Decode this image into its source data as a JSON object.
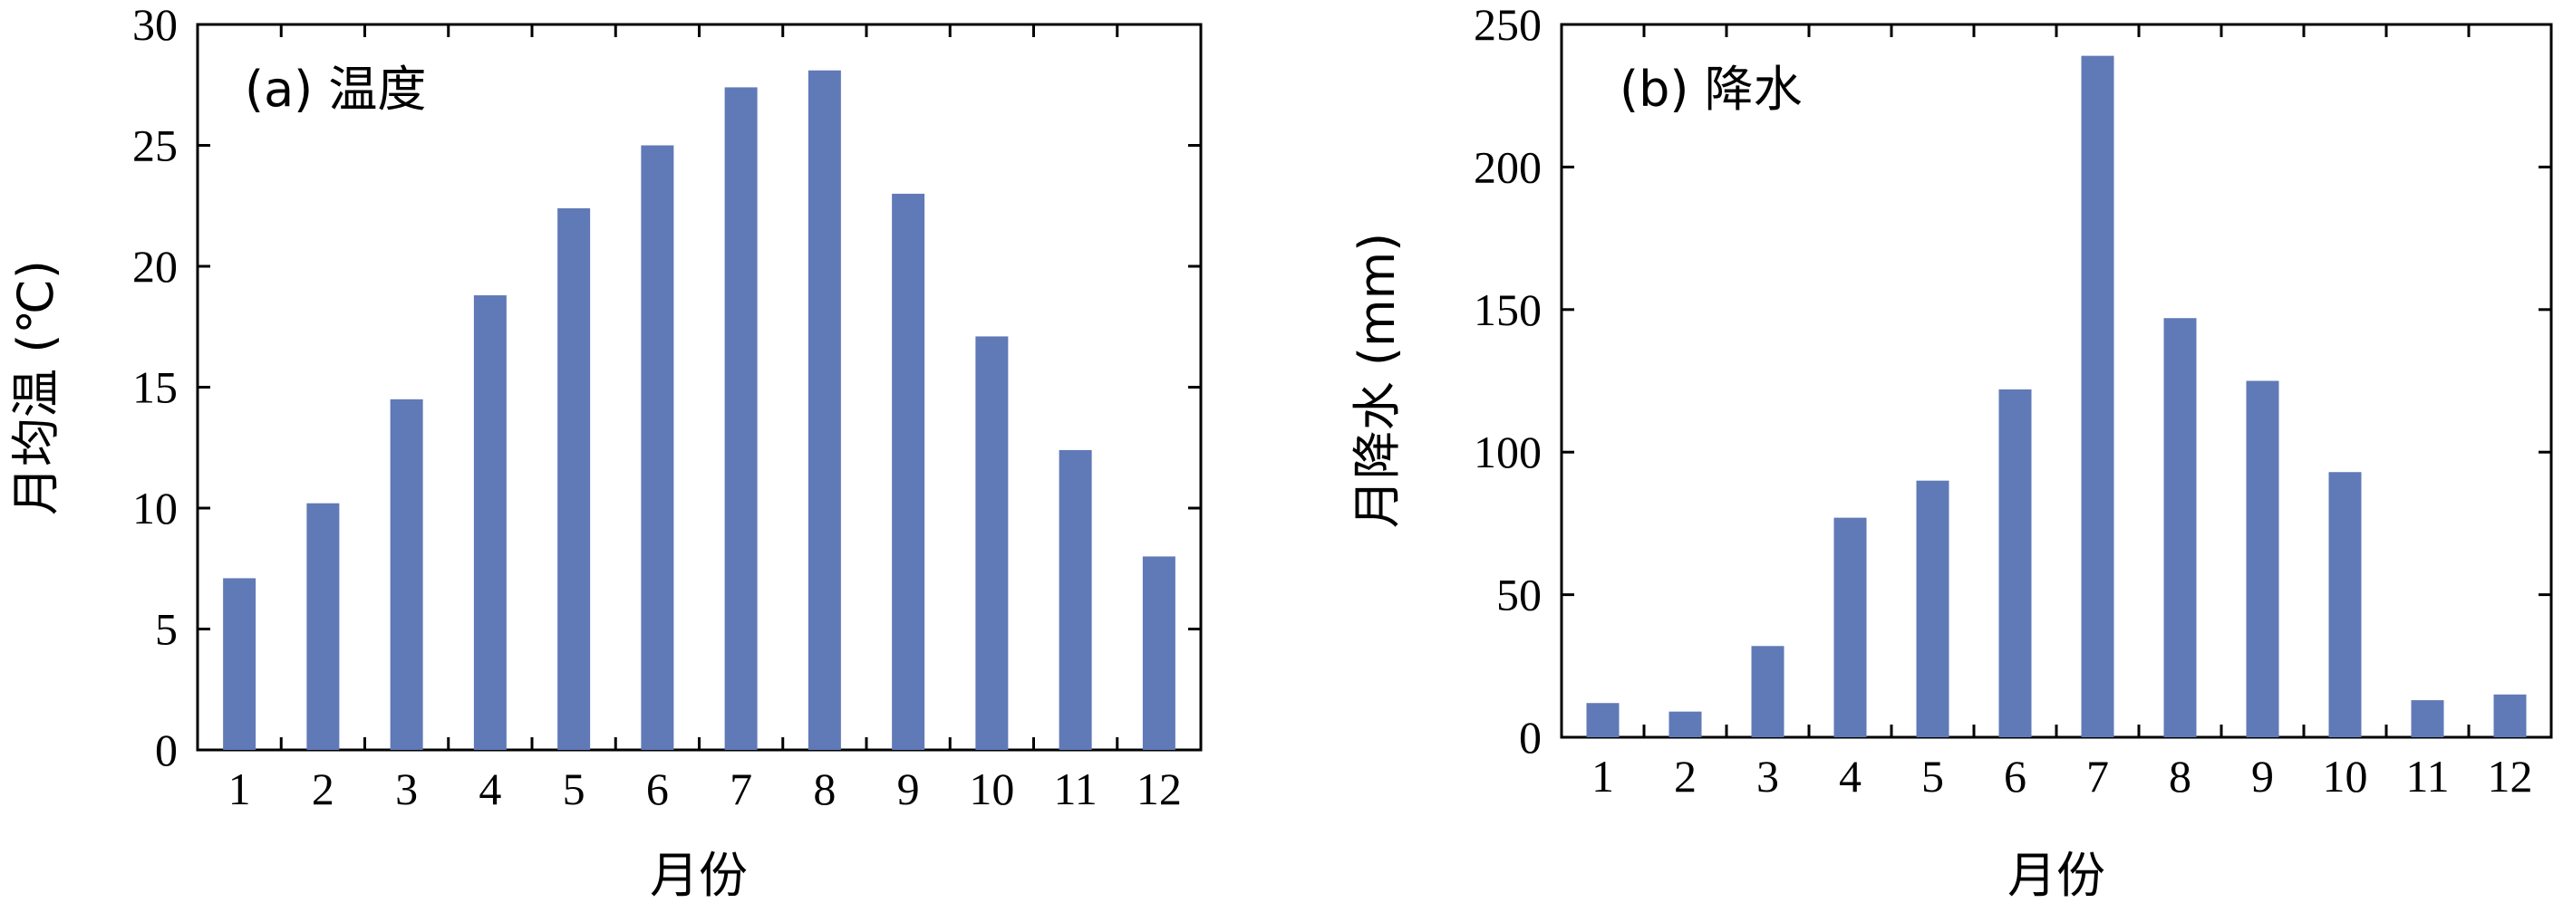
{
  "colors": {
    "bar": "#6079B7",
    "axis": "#000000"
  },
  "chart_data": [
    {
      "type": "bar",
      "title": "(a) 温度",
      "xlabel": "月份",
      "ylabel": "月均温 (℃)",
      "categories": [
        "1",
        "2",
        "3",
        "4",
        "5",
        "6",
        "7",
        "8",
        "9",
        "10",
        "11",
        "12"
      ],
      "values": [
        7.1,
        10.2,
        14.5,
        18.8,
        22.4,
        25.0,
        27.4,
        28.1,
        23.0,
        17.1,
        12.4,
        8.0
      ],
      "ylim": [
        0,
        30
      ],
      "yticks": [
        0,
        5,
        10,
        15,
        20,
        25,
        30
      ],
      "ytick_labels": [
        "0",
        "5",
        "10",
        "15",
        "20",
        "25",
        "30"
      ],
      "grid": false,
      "legend": "none"
    },
    {
      "type": "bar",
      "title": "(b) 降水",
      "xlabel": "月份",
      "ylabel": "月降水 (mm)",
      "categories": [
        "1",
        "2",
        "3",
        "4",
        "5",
        "6",
        "7",
        "8",
        "9",
        "10",
        "11",
        "12"
      ],
      "values": [
        12,
        9,
        32,
        77,
        90,
        122,
        239,
        147,
        125,
        93,
        13,
        15
      ],
      "ylim": [
        0,
        250
      ],
      "yticks": [
        0,
        50,
        100,
        150,
        200,
        250
      ],
      "ytick_labels": [
        "0",
        "50",
        "100",
        "150",
        "200",
        "250"
      ],
      "grid": false,
      "legend": "none"
    }
  ]
}
